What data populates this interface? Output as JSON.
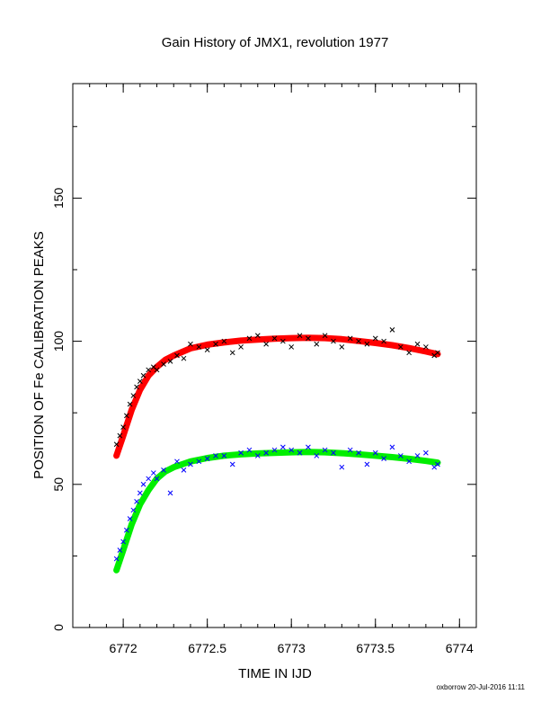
{
  "title": "Gain History of JMX1, revolution 1977",
  "footer": "oxborrow 20-Jul-2016 11:11",
  "colors": {
    "black_points": "#000000",
    "blue_points": "#0000ff",
    "red_fit": "#ff0000",
    "green_fit": "#00ee00"
  },
  "chart_data": {
    "type": "scatter",
    "title": "Gain History of JMX1, revolution 1977",
    "xlabel": "TIME IN IJD",
    "ylabel": "POSITION OF Fe CALIBRATION PEAKS",
    "xlim": [
      6771.7,
      6774.1
    ],
    "ylim": [
      0,
      190
    ],
    "xticks": [
      6772,
      6772.5,
      6773,
      6773.5,
      6774
    ],
    "xtick_labels": [
      "6772",
      "6772.5",
      "6773",
      "6773.5",
      "6774"
    ],
    "yticks": [
      0,
      50,
      100,
      150
    ],
    "ytick_labels": [
      "0",
      "50",
      "100",
      "150"
    ],
    "grid": false,
    "series": [
      {
        "kind": "points",
        "marker": "x",
        "color": "#000000",
        "x": [
          6771.96,
          6771.98,
          6772.0,
          6772.02,
          6772.04,
          6772.06,
          6772.08,
          6772.1,
          6772.12,
          6772.15,
          6772.18,
          6772.2,
          6772.24,
          6772.28,
          6772.32,
          6772.36,
          6772.4,
          6772.45,
          6772.5,
          6772.55,
          6772.6,
          6772.65,
          6772.7,
          6772.75,
          6772.8,
          6772.85,
          6772.9,
          6772.95,
          6773.0,
          6773.05,
          6773.1,
          6773.15,
          6773.2,
          6773.25,
          6773.3,
          6773.35,
          6773.4,
          6773.45,
          6773.5,
          6773.55,
          6773.6,
          6773.65,
          6773.7,
          6773.75,
          6773.8,
          6773.85,
          6773.87
        ],
        "y": [
          64,
          67,
          70,
          74,
          78,
          81,
          84,
          86,
          88,
          90,
          91,
          90,
          92,
          93,
          95,
          94,
          99,
          98,
          97,
          99,
          100,
          96,
          98,
          101,
          102,
          99,
          101,
          100,
          98,
          102,
          101,
          99,
          102,
          100,
          98,
          101,
          100,
          99,
          101,
          100,
          104,
          98,
          96,
          99,
          98,
          95,
          96
        ]
      },
      {
        "kind": "points",
        "marker": "x",
        "color": "#0000ff",
        "x": [
          6771.96,
          6771.98,
          6772.0,
          6772.02,
          6772.04,
          6772.06,
          6772.08,
          6772.1,
          6772.12,
          6772.15,
          6772.18,
          6772.2,
          6772.24,
          6772.28,
          6772.32,
          6772.36,
          6772.4,
          6772.45,
          6772.5,
          6772.55,
          6772.6,
          6772.65,
          6772.7,
          6772.75,
          6772.8,
          6772.85,
          6772.9,
          6772.95,
          6773.0,
          6773.05,
          6773.1,
          6773.15,
          6773.2,
          6773.25,
          6773.3,
          6773.35,
          6773.4,
          6773.45,
          6773.5,
          6773.55,
          6773.6,
          6773.65,
          6773.7,
          6773.75,
          6773.8,
          6773.85,
          6773.87
        ],
        "y": [
          24,
          27,
          30,
          34,
          38,
          41,
          44,
          47,
          50,
          52,
          54,
          52,
          55,
          47,
          58,
          55,
          57,
          58,
          59,
          60,
          60,
          57,
          61,
          62,
          60,
          61,
          62,
          63,
          62,
          61,
          63,
          60,
          62,
          61,
          56,
          62,
          61,
          57,
          61,
          59,
          63,
          60,
          58,
          60,
          61,
          56,
          57
        ]
      },
      {
        "kind": "fit",
        "color": "#ff0000",
        "x": [
          6771.96,
          6772.0,
          6772.05,
          6772.1,
          6772.15,
          6772.2,
          6772.25,
          6772.3,
          6772.4,
          6772.5,
          6772.6,
          6772.7,
          6772.8,
          6772.9,
          6773.0,
          6773.1,
          6773.2,
          6773.3,
          6773.4,
          6773.5,
          6773.6,
          6773.7,
          6773.8,
          6773.87
        ],
        "y": [
          60,
          67,
          76,
          83,
          88,
          91,
          93.5,
          95,
          97.5,
          98.8,
          99.6,
          100.2,
          100.6,
          100.9,
          101.1,
          101.2,
          101.1,
          100.7,
          100.1,
          99.4,
          98.6,
          97.6,
          96.4,
          95.5
        ]
      },
      {
        "kind": "fit",
        "color": "#00ee00",
        "x": [
          6771.96,
          6772.0,
          6772.05,
          6772.1,
          6772.15,
          6772.2,
          6772.25,
          6772.3,
          6772.4,
          6772.5,
          6772.6,
          6772.7,
          6772.8,
          6772.9,
          6773.0,
          6773.1,
          6773.2,
          6773.3,
          6773.4,
          6773.5,
          6773.6,
          6773.7,
          6773.8,
          6773.87
        ],
        "y": [
          20,
          27,
          36,
          43,
          48,
          52,
          54.5,
          56,
          58,
          59.2,
          60,
          60.5,
          60.8,
          61.0,
          61.2,
          61.3,
          61.2,
          60.9,
          60.5,
          60.0,
          59.5,
          58.9,
          58.2,
          57.6
        ]
      }
    ]
  }
}
